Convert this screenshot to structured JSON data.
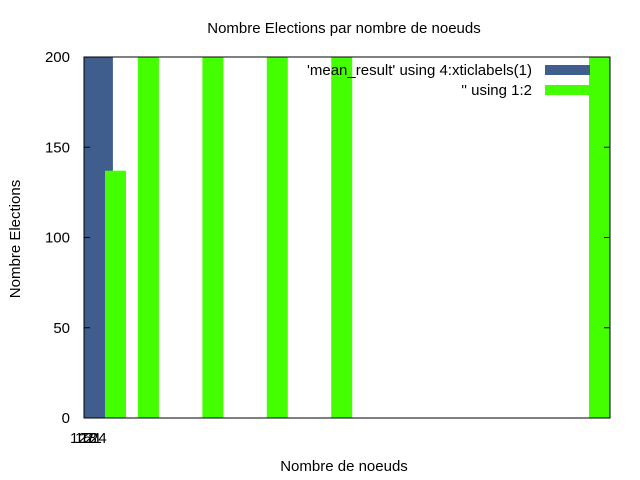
{
  "chart_data": {
    "type": "bar",
    "title": "Nombre Elections par nombre de noeuds",
    "xlabel": "Nombre de noeuds",
    "ylabel": "Nombre Elections",
    "ylim": [
      0,
      200
    ],
    "yticks": [
      0,
      50,
      100,
      150,
      200
    ],
    "xlim": [
      0,
      40
    ],
    "x_tick_labels": [
      "12",
      "15",
      "18",
      "21",
      "24"
    ],
    "legend_position": "top-right",
    "grid": false,
    "series": [
      {
        "name": "'mean_result' using 4:xticlabels(1)",
        "color": "#3f5e8d",
        "bars": [
          {
            "x0": 0.0,
            "x1": 2.2,
            "value": 200
          }
        ]
      },
      {
        "name": "'' using 1:2",
        "color": "#44ff00",
        "bars": [
          {
            "x0": 1.6,
            "x1": 3.2,
            "value": 137
          },
          {
            "x0": 4.1,
            "x1": 5.7,
            "value": 200
          },
          {
            "x0": 9.0,
            "x1": 10.6,
            "value": 200
          },
          {
            "x0": 13.9,
            "x1": 15.5,
            "value": 200
          },
          {
            "x0": 18.8,
            "x1": 20.4,
            "value": 200
          },
          {
            "x0": 38.4,
            "x1": 40.0,
            "value": 200
          }
        ]
      }
    ]
  }
}
